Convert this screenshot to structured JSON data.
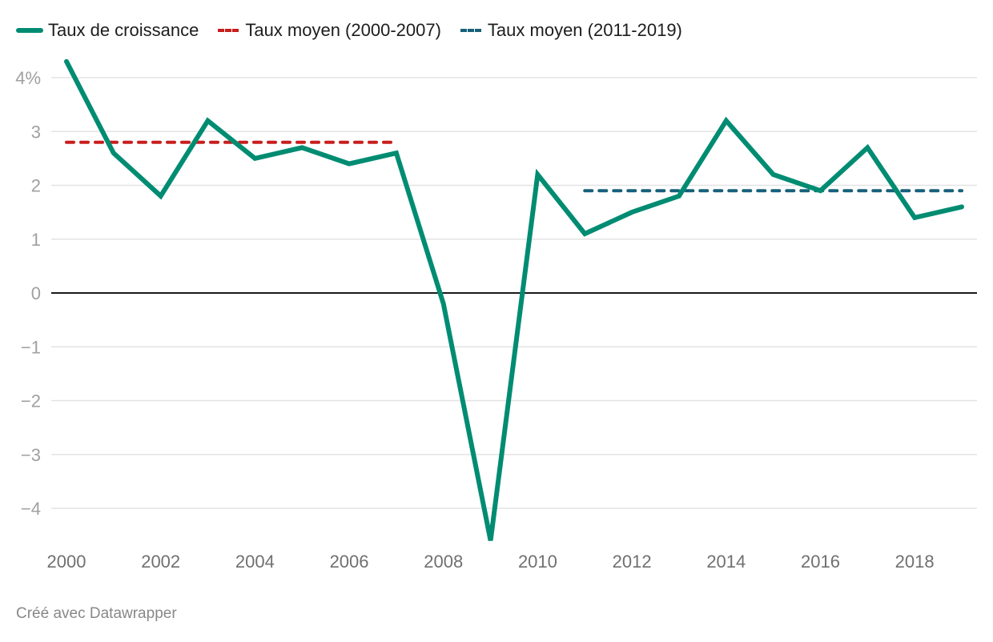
{
  "chart_data": {
    "type": "line",
    "title": "",
    "xlabel": "",
    "ylabel": "",
    "x": [
      2000,
      2001,
      2002,
      2003,
      2004,
      2005,
      2006,
      2007,
      2008,
      2009,
      2010,
      2011,
      2012,
      2013,
      2014,
      2015,
      2016,
      2017,
      2018,
      2019
    ],
    "series": [
      {
        "name": "Taux de croissance",
        "color": "#008c72",
        "style": "solid",
        "values": [
          4.3,
          2.6,
          1.8,
          3.2,
          2.5,
          2.7,
          2.4,
          2.6,
          -0.2,
          -4.6,
          2.2,
          1.1,
          1.5,
          1.8,
          3.2,
          2.2,
          1.9,
          2.7,
          1.4,
          1.6
        ]
      },
      {
        "name": "Taux moyen (2000-2007)",
        "color": "#c71e1d",
        "style": "dashed",
        "x_range": [
          2000,
          2007
        ],
        "value": 2.8
      },
      {
        "name": "Taux moyen (2011-2019)",
        "color": "#18607a",
        "style": "dashed",
        "x_range": [
          2011,
          2019
        ],
        "value": 1.9
      }
    ],
    "yticks": [
      4,
      3,
      2,
      1,
      0,
      -1,
      -2,
      -3,
      -4
    ],
    "ytick_labels": [
      "4%",
      "3",
      "2",
      "1",
      "0",
      "−1",
      "−2",
      "−3",
      "−4"
    ],
    "xticks": [
      2000,
      2002,
      2004,
      2006,
      2008,
      2010,
      2012,
      2014,
      2016,
      2018
    ],
    "xtick_labels": [
      "2000",
      "2002",
      "2004",
      "2006",
      "2008",
      "2010",
      "2012",
      "2014",
      "2016",
      "2018"
    ],
    "ylim": [
      -4.6,
      4.3
    ],
    "xlim": [
      2000,
      2019
    ],
    "grid": true,
    "legend_position": "top-left"
  },
  "legend": {
    "items": [
      {
        "label": "Taux de croissance"
      },
      {
        "label": "Taux moyen (2000-2007)"
      },
      {
        "label": "Taux moyen (2011-2019)"
      }
    ]
  },
  "footer": {
    "credit": "Créé avec Datawrapper"
  }
}
